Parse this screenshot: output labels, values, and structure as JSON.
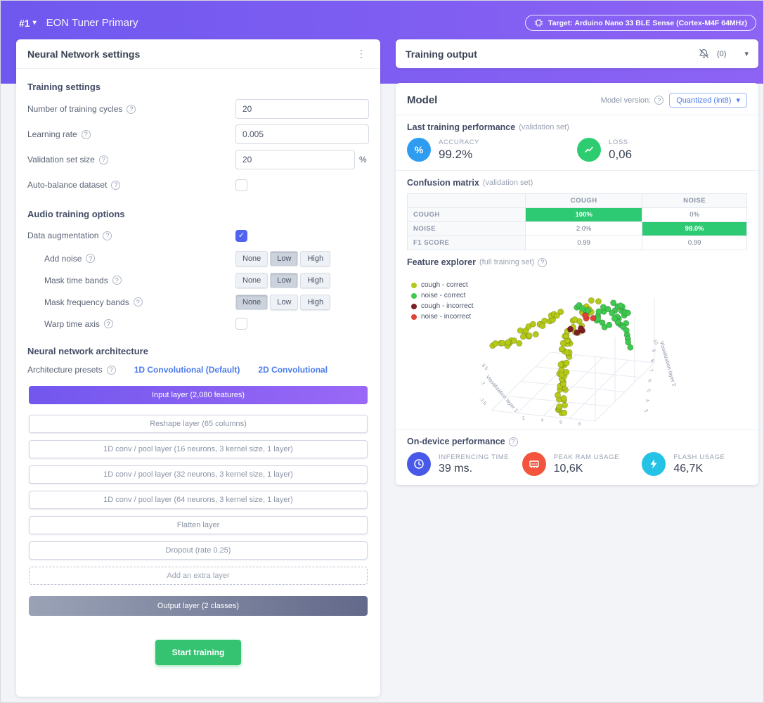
{
  "icons": {
    "help": "?",
    "kebab": "⋮",
    "chevron": "▾",
    "check": "✓"
  },
  "colors": {
    "header_gradient_start": "#6f58ef",
    "header_gradient_end": "#8d63f4",
    "link_blue": "#4b7bec",
    "check_blue": "#4e64f1",
    "start_green": "#35c372",
    "matrix_green": "#2dca73",
    "accuracy_blue": "#2e9df1",
    "loss_green": "#2ecc71",
    "time_blue": "#4859e9",
    "ram_red": "#f2543d",
    "flash_cyan": "#24c3e6",
    "output_gradient_start": "#9aa3b6",
    "output_gradient_end": "#62698a"
  },
  "header": {
    "run_id": "#1",
    "title": "EON Tuner Primary",
    "target": "Target: Arduino Nano 33 BLE Sense (Cortex-M4F 64MHz)"
  },
  "nn": {
    "card_title": "Neural Network settings",
    "training_section": "Training settings",
    "fields": [
      {
        "label": "Number of training cycles",
        "value": "20"
      },
      {
        "label": "Learning rate",
        "value": "0.005"
      },
      {
        "label": "Validation set size",
        "value": "20",
        "suffix": "%"
      }
    ],
    "auto_balance": {
      "label": "Auto-balance dataset",
      "checked": false
    },
    "audio_section": "Audio training options",
    "augmentation": {
      "label": "Data augmentation",
      "checked": true,
      "options": [
        "None",
        "Low",
        "High"
      ],
      "rows": [
        {
          "label": "Add noise",
          "selected": 1
        },
        {
          "label": "Mask time bands",
          "selected": 1
        },
        {
          "label": "Mask frequency bands",
          "selected": 0
        }
      ],
      "warp": {
        "label": "Warp time axis",
        "checked": false
      }
    },
    "architecture_section": "Neural network architecture",
    "presets_label": "Architecture presets",
    "preset_links": [
      "1D Convolutional (Default)",
      "2D Convolutional"
    ],
    "layers": [
      {
        "label": "Input layer (2,080 features)",
        "type": "input"
      },
      {
        "label": "Reshape layer (65 columns)",
        "type": "normal"
      },
      {
        "label": "1D conv / pool layer (16 neurons, 3 kernel size, 1 layer)",
        "type": "normal"
      },
      {
        "label": "1D conv / pool layer (32 neurons, 3 kernel size, 1 layer)",
        "type": "normal"
      },
      {
        "label": "1D conv / pool layer (64 neurons, 3 kernel size, 1 layer)",
        "type": "normal"
      },
      {
        "label": "Flatten layer",
        "type": "normal"
      },
      {
        "label": "Dropout (rate 0.25)",
        "type": "normal"
      },
      {
        "label": "Add an extra layer",
        "type": "dashed"
      },
      {
        "label": "Output layer (2 classes)",
        "type": "output"
      }
    ],
    "start_button": "Start training"
  },
  "output": {
    "card_title": "Training output",
    "mute_count": "(0)",
    "model_title": "Model",
    "version_label": "Model version:",
    "version_value": "Quantized (int8)",
    "perf_title": "Last training performance",
    "perf_subtitle": "(validation set)",
    "metrics": [
      {
        "label": "ACCURACY",
        "value": "99.2%"
      },
      {
        "label": "LOSS",
        "value": "0,06"
      }
    ],
    "confusion_title": "Confusion matrix",
    "confusion_subtitle": "(validation set)",
    "confusion": {
      "col_headers": [
        "COUGH",
        "NOISE"
      ],
      "rows": [
        {
          "label": "COUGH",
          "cells": [
            {
              "text": "100%",
              "green": true
            },
            {
              "text": "0%",
              "green": false
            }
          ]
        },
        {
          "label": "NOISE",
          "cells": [
            {
              "text": "2.0%",
              "green": false
            },
            {
              "text": "98.0%",
              "green": true
            }
          ]
        },
        {
          "label": "F1 SCORE",
          "cells": [
            {
              "text": "0.99",
              "green": false
            },
            {
              "text": "0.99",
              "green": false
            }
          ]
        }
      ]
    },
    "explorer_title": "Feature explorer",
    "explorer_subtitle": "(full training set)",
    "ondevice_title": "On-device performance",
    "device_metrics": [
      {
        "label": "INFERENCING TIME",
        "value": "39 ms."
      },
      {
        "label": "PEAK RAM USAGE",
        "value": "10,6K"
      },
      {
        "label": "FLASH USAGE",
        "value": "46,7K"
      }
    ]
  },
  "chart_data": {
    "type": "scatter",
    "title": "Feature explorer (full training set)",
    "x_axis_label": "Visualization layer 1",
    "y_axis_label": "Visualization layer 2",
    "left_ticks": [
      "8.5",
      "-7",
      "-7.5"
    ],
    "bottom_ticks": [
      "2",
      "4",
      "6",
      "8"
    ],
    "right_ticks": [
      "10",
      "9",
      "8",
      "7",
      "6",
      "5",
      "4",
      "3"
    ],
    "legend": [
      {
        "key": "cough-correct",
        "label": "cough - correct",
        "color": "#b5c918"
      },
      {
        "key": "noise-correct",
        "label": "noise - correct",
        "color": "#3fc94f"
      },
      {
        "key": "cough-incorrect",
        "label": "cough - incorrect",
        "color": "#7d1f24"
      },
      {
        "key": "noise-incorrect",
        "label": "noise - incorrect",
        "color": "#e14034"
      }
    ],
    "clusters": [
      {
        "color": "cough-correct",
        "n": 40,
        "line": true,
        "x1": 0.46,
        "y1": 0.98,
        "x2": 0.5,
        "y2": 0.4,
        "jitter": 0.03
      },
      {
        "color": "cough-correct",
        "n": 20,
        "line": true,
        "x1": 0.5,
        "y1": 0.4,
        "x2": 0.68,
        "y2": 0.16,
        "jitter": 0.04
      },
      {
        "color": "cough-correct",
        "n": 22,
        "line": true,
        "x1": 0.16,
        "y1": 0.44,
        "x2": 0.46,
        "y2": 0.24,
        "jitter": 0.04
      },
      {
        "color": "cough-correct",
        "n": 8,
        "line": true,
        "x1": 0.02,
        "y1": 0.5,
        "x2": 0.15,
        "y2": 0.42,
        "jitter": 0.03
      },
      {
        "color": "noise-correct",
        "n": 26,
        "cx": 0.8,
        "cy": 0.26,
        "r": 0.1
      },
      {
        "color": "noise-correct",
        "n": 7,
        "line": true,
        "x1": 0.88,
        "y1": 0.3,
        "x2": 0.92,
        "y2": 0.5,
        "jitter": 0.02
      },
      {
        "color": "noise-correct",
        "n": 5,
        "cx": 0.6,
        "cy": 0.2,
        "r": 0.04
      },
      {
        "color": "cough-incorrect",
        "n": 4,
        "cx": 0.56,
        "cy": 0.34,
        "r": 0.05
      },
      {
        "color": "noise-incorrect",
        "n": 3,
        "cx": 0.64,
        "cy": 0.28,
        "r": 0.035
      }
    ]
  }
}
